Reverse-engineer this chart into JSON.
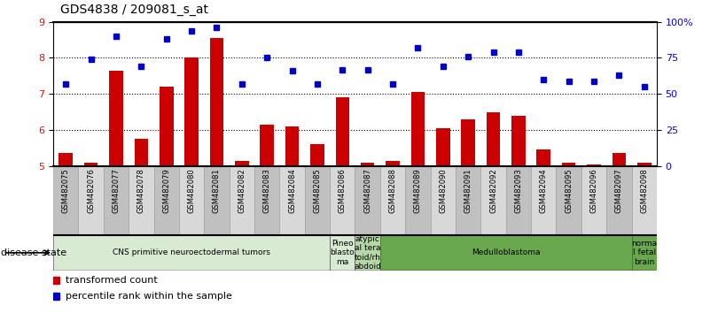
{
  "title": "GDS4838 / 209081_s_at",
  "samples": [
    "GSM482075",
    "GSM482076",
    "GSM482077",
    "GSM482078",
    "GSM482079",
    "GSM482080",
    "GSM482081",
    "GSM482082",
    "GSM482083",
    "GSM482084",
    "GSM482085",
    "GSM482086",
    "GSM482087",
    "GSM482088",
    "GSM482089",
    "GSM482090",
    "GSM482091",
    "GSM482092",
    "GSM482093",
    "GSM482094",
    "GSM482095",
    "GSM482096",
    "GSM482097",
    "GSM482098"
  ],
  "bar_values": [
    5.35,
    5.1,
    7.65,
    5.75,
    7.2,
    8.0,
    8.55,
    5.15,
    6.15,
    6.1,
    5.6,
    6.9,
    5.1,
    5.15,
    7.05,
    6.05,
    6.3,
    6.5,
    6.4,
    5.45,
    5.1,
    5.05,
    5.35,
    5.1
  ],
  "dot_values_pct": [
    57,
    74,
    90,
    69,
    88,
    94,
    96,
    57,
    75,
    66,
    57,
    67,
    67,
    57,
    82,
    69,
    76,
    79,
    79,
    60,
    59,
    59,
    63,
    55
  ],
  "bar_color": "#cc0000",
  "dot_color": "#0000cc",
  "ylim_left": [
    5,
    9
  ],
  "ylim_right": [
    0,
    100
  ],
  "yticks_left": [
    5,
    6,
    7,
    8,
    9
  ],
  "yticks_right": [
    0,
    25,
    50,
    75,
    100
  ],
  "ytick_labels_right": [
    "0",
    "25",
    "50",
    "75",
    "100%"
  ],
  "disease_groups": [
    {
      "label": "CNS primitive neuroectodermal tumors",
      "start": 0,
      "end": 11,
      "color": "#d9ead3"
    },
    {
      "label": "Pineo\nblasto\nma",
      "start": 11,
      "end": 12,
      "color": "#d9ead3"
    },
    {
      "label": "atypic\nal tera\ntoid/rh\nabdoid",
      "start": 12,
      "end": 13,
      "color": "#b6d7a8"
    },
    {
      "label": "Medulloblastoma",
      "start": 13,
      "end": 23,
      "color": "#6aa84f"
    },
    {
      "label": "norma\nl fetal\nbrain",
      "start": 23,
      "end": 24,
      "color": "#6aa84f"
    }
  ],
  "xlabel_disease": "disease state",
  "legend_bar": "transformed count",
  "legend_dot": "percentile rank within the sample",
  "plot_bg": "#ffffff",
  "xtick_bg_odd": "#c0c0c0",
  "xtick_bg_even": "#d8d8d8"
}
